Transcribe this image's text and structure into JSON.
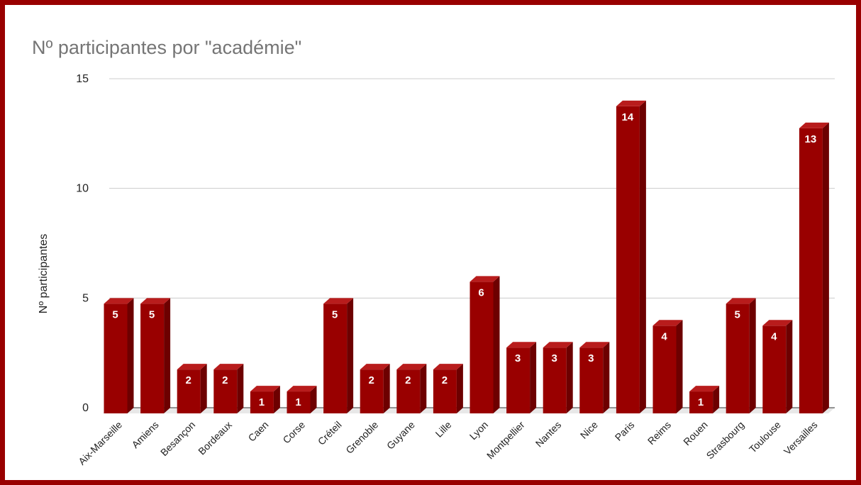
{
  "chart_data": {
    "type": "bar",
    "title": "Nº participantes por \"académie\"",
    "xlabel": "",
    "ylabel": "Nº participantes",
    "ylim": [
      0,
      15
    ],
    "yticks": [
      "0",
      "5",
      "10",
      "15"
    ],
    "grid": true,
    "legend": "none",
    "style": "3d",
    "categories": [
      "Aix-Marseille",
      "Amiens",
      "Besançon",
      "Bordeaux",
      "Caen",
      "Corse",
      "Créteil",
      "Grenoble",
      "Guyane",
      "Lille",
      "Lyon",
      "Montpellier",
      "Nantes",
      "Nice",
      "Paris",
      "Reims",
      "Rouen",
      "Strasbourg",
      "Toulouse",
      "Versailles"
    ],
    "values": [
      5,
      5,
      2,
      2,
      1,
      1,
      5,
      2,
      2,
      2,
      6,
      3,
      3,
      3,
      14,
      4,
      1,
      5,
      4,
      13
    ],
    "bar_color": "#990000",
    "frame_color": "#990000"
  }
}
